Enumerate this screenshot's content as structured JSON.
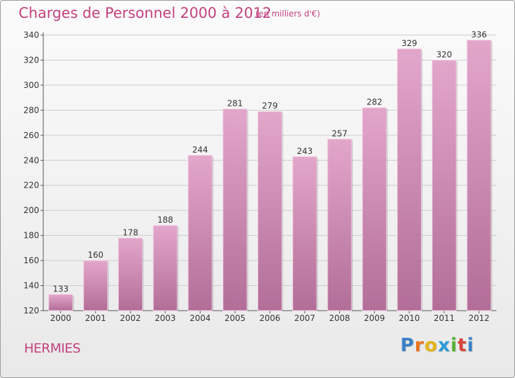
{
  "title": "Charges de Personnel 2000 à 2012",
  "subtitle": "(en milliers d'€)",
  "town": "HERMIES",
  "logo": {
    "letters": [
      "P",
      "r",
      "o",
      "x",
      "i",
      "t",
      "i"
    ],
    "colors": [
      "#3b7fc4",
      "#e8731c",
      "#e2b31a",
      "#2a9bd6",
      "#56b133",
      "#d9463b",
      "#3b7fc4"
    ]
  },
  "colors": {
    "title": "#c2417f",
    "bar_top": "#e3a6cb",
    "bar_bottom": "#b26e98",
    "grid": "#cccccc",
    "axis_text": "#333333"
  },
  "chart_data": {
    "type": "bar",
    "categories": [
      "2000",
      "2001",
      "2002",
      "2003",
      "2004",
      "2005",
      "2006",
      "2007",
      "2008",
      "2009",
      "2010",
      "2011",
      "2012"
    ],
    "values": [
      133,
      160,
      178,
      188,
      244,
      281,
      279,
      243,
      257,
      282,
      329,
      320,
      336
    ],
    "yticks": [
      120,
      140,
      160,
      180,
      200,
      220,
      240,
      260,
      280,
      300,
      320,
      340
    ],
    "ylim": [
      120,
      340
    ],
    "grid": true,
    "data_labels": true
  }
}
